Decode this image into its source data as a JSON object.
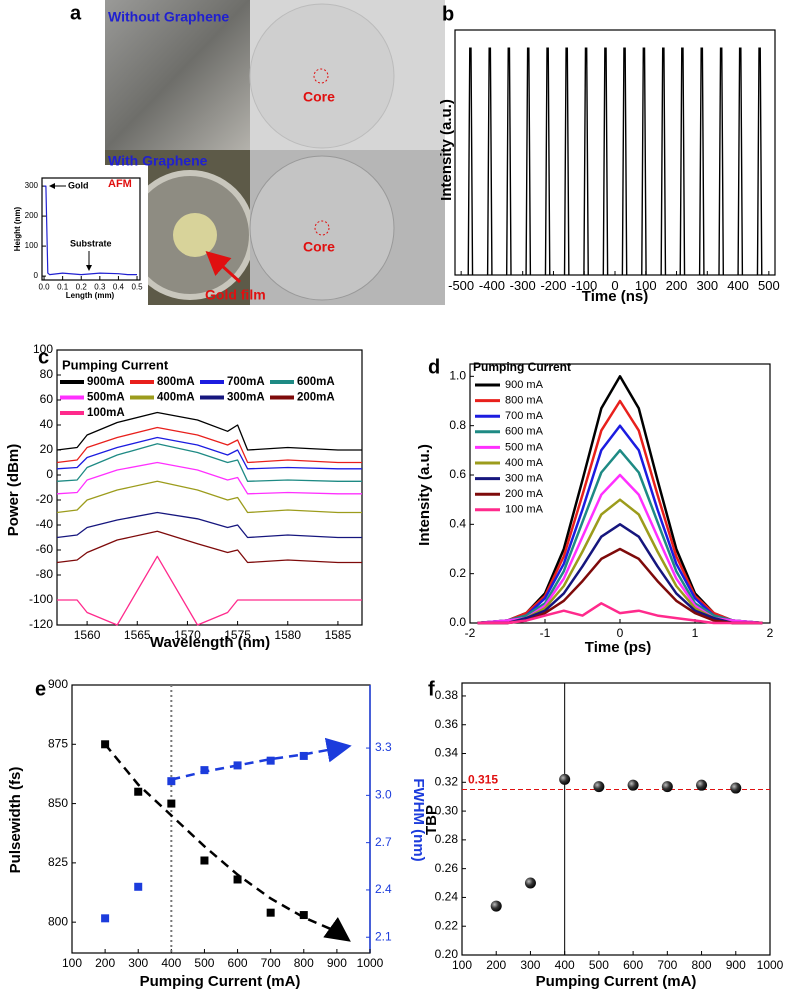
{
  "figure_a": {
    "label": "a",
    "top_left": "Without Graphene",
    "bottom_left": "With Graphene",
    "afm": "AFM",
    "core_labels": [
      "Core",
      "Core"
    ],
    "gold_film": "Gold film"
  },
  "chart_data": [
    {
      "type": "line",
      "xlabel": "Length (mm)",
      "ylabel": "Height (nm)",
      "annotations": [
        "Gold",
        "Substrate"
      ],
      "xlim": [
        -0.011,
        0.516
      ],
      "xticks": [
        {
          "value": 0,
          "label": "0.0"
        },
        0.1,
        0.2,
        0.3,
        0.4,
        0.5
      ],
      "ylim": [
        -13,
        327
      ],
      "yticks": [
        0,
        100,
        200,
        300
      ],
      "x": [
        0,
        0.01,
        0.02,
        0.03,
        0.1,
        0.2,
        0.3,
        0.4,
        0.45,
        0.5
      ],
      "series": [
        {
          "color": "#2020d0",
          "values": [
            300,
            300,
            10,
            5,
            10,
            5,
            10,
            8,
            5,
            5
          ]
        }
      ]
    },
    {
      "type": "spikes",
      "label": "b",
      "xlabel": "Time (ns)",
      "ylabel": "Intensity (a.u.)",
      "xlim": [
        -520,
        520
      ],
      "xticks": [
        -500,
        -400,
        -300,
        -200,
        -100,
        0,
        100,
        200,
        300,
        400,
        500
      ],
      "ylim": [
        0,
        1.08
      ],
      "color": "#000000",
      "x": [
        -470,
        -407,
        -345,
        -282,
        -219,
        -157,
        -94,
        -31,
        31,
        94,
        157,
        219,
        282,
        345,
        407,
        470
      ],
      "values": [
        1,
        1,
        1,
        1,
        1,
        1,
        1,
        1,
        1,
        1,
        1,
        1,
        1,
        1,
        1,
        1
      ]
    },
    {
      "type": "line",
      "label": "c",
      "xlabel": "Wavelength (nm)",
      "ylabel": "Power (dBm)",
      "legend_title": "Pumping Current",
      "xlim": [
        1557,
        1587.4
      ],
      "xticks": [
        1560,
        1565,
        1570,
        1575,
        1580,
        1585
      ],
      "ylim": [
        -120,
        100
      ],
      "yticks": [
        -120,
        -100,
        -80,
        -60,
        -40,
        -20,
        0,
        20,
        40,
        60,
        80,
        100
      ],
      "x": [
        1557,
        1559,
        1560,
        1563,
        1567,
        1571,
        1574,
        1575,
        1576,
        1580,
        1585,
        1587.4
      ],
      "series": [
        {
          "name": "900mA",
          "color": "#000000",
          "values": [
            20,
            22,
            32,
            42,
            50,
            44,
            35,
            40,
            20,
            22,
            20,
            20
          ]
        },
        {
          "name": "800mA",
          "color": "#e8201c",
          "values": [
            10,
            12,
            22,
            30,
            38,
            32,
            24,
            28,
            10,
            12,
            10,
            10
          ]
        },
        {
          "name": "700mA",
          "color": "#1c1ce0",
          "values": [
            5,
            6,
            14,
            22,
            30,
            24,
            16,
            20,
            5,
            6,
            5,
            5
          ]
        },
        {
          "name": "600mA",
          "color": "#1e8a84",
          "values": [
            -5,
            -4,
            6,
            16,
            25,
            18,
            10,
            12,
            -5,
            -4,
            -5,
            -5
          ]
        },
        {
          "name": "500mA",
          "color": "#ff30ff",
          "values": [
            -15,
            -14,
            -4,
            4,
            10,
            4,
            -4,
            -2,
            -15,
            -14,
            -15,
            -15
          ]
        },
        {
          "name": "400mA",
          "color": "#9c9c1c",
          "values": [
            -30,
            -28,
            -20,
            -12,
            -5,
            -12,
            -20,
            -18,
            -30,
            -28,
            -30,
            -30
          ]
        },
        {
          "name": "300mA",
          "color": "#16167e",
          "values": [
            -50,
            -48,
            -42,
            -36,
            -30,
            -35,
            -42,
            -40,
            -50,
            -48,
            -50,
            -50
          ]
        },
        {
          "name": "200mA",
          "color": "#7e0a0a",
          "values": [
            -70,
            -68,
            -62,
            -52,
            -45,
            -55,
            -62,
            -60,
            -70,
            -68,
            -70,
            -70
          ]
        },
        {
          "name": "100mA",
          "color": "#ff2a8c",
          "values": [
            -100,
            -100,
            -110,
            -120,
            -65,
            -120,
            -110,
            -100,
            -100,
            -100,
            -100,
            -100
          ]
        }
      ]
    },
    {
      "type": "line",
      "label": "d",
      "xlabel": "Time (ps)",
      "ylabel": "Intensity (a.u.)",
      "legend_title": "Pumping Current",
      "xlim": [
        -2,
        2
      ],
      "xticks": [
        -2,
        -1,
        0,
        1,
        2
      ],
      "ylim": [
        0,
        1.05
      ],
      "yticks": [
        {
          "value": 0,
          "label": "0.0"
        },
        0.2,
        0.4,
        0.6,
        0.8,
        {
          "value": 1,
          "label": "1.0"
        }
      ],
      "x": [
        -1.9,
        -1.5,
        -1.25,
        -1,
        -0.75,
        -0.5,
        -0.25,
        0,
        0.25,
        0.5,
        0.75,
        1,
        1.25,
        1.5,
        1.9
      ],
      "series": [
        {
          "name": "900 mA",
          "color": "#000000",
          "values": [
            0,
            0.01,
            0.04,
            0.12,
            0.3,
            0.58,
            0.87,
            1,
            0.87,
            0.58,
            0.3,
            0.12,
            0.04,
            0.01,
            0
          ]
        },
        {
          "name": "800 mA",
          "color": "#e8201c",
          "values": [
            0,
            0.01,
            0.04,
            0.11,
            0.27,
            0.52,
            0.78,
            0.9,
            0.78,
            0.52,
            0.27,
            0.11,
            0.04,
            0.01,
            0
          ]
        },
        {
          "name": "700 mA",
          "color": "#1c1ce0",
          "values": [
            0,
            0.01,
            0.03,
            0.1,
            0.24,
            0.46,
            0.7,
            0.8,
            0.7,
            0.46,
            0.24,
            0.1,
            0.03,
            0.01,
            0
          ]
        },
        {
          "name": "600 mA",
          "color": "#1e8a84",
          "values": [
            0,
            0.01,
            0.03,
            0.08,
            0.21,
            0.41,
            0.61,
            0.7,
            0.61,
            0.41,
            0.21,
            0.08,
            0.03,
            0.01,
            0
          ]
        },
        {
          "name": "500 mA",
          "color": "#ff30ff",
          "values": [
            0,
            0.01,
            0.02,
            0.07,
            0.18,
            0.35,
            0.52,
            0.6,
            0.52,
            0.35,
            0.18,
            0.07,
            0.02,
            0.01,
            0
          ]
        },
        {
          "name": "400 mA",
          "color": "#9c9c1c",
          "values": [
            0,
            0,
            0.02,
            0.06,
            0.15,
            0.29,
            0.44,
            0.5,
            0.44,
            0.29,
            0.15,
            0.06,
            0.02,
            0,
            0
          ]
        },
        {
          "name": "300 mA",
          "color": "#16167e",
          "values": [
            0,
            0,
            0.02,
            0.05,
            0.12,
            0.23,
            0.35,
            0.4,
            0.35,
            0.23,
            0.12,
            0.05,
            0.02,
            0,
            0
          ]
        },
        {
          "name": "200 mA",
          "color": "#7e0a0a",
          "values": [
            0,
            0,
            0.01,
            0.04,
            0.09,
            0.17,
            0.26,
            0.3,
            0.26,
            0.17,
            0.09,
            0.04,
            0.01,
            0,
            0
          ]
        },
        {
          "name": "100 mA",
          "color": "#ff2a8c",
          "values": [
            0,
            0,
            0.01,
            0.03,
            0.05,
            0.03,
            0.08,
            0.04,
            0.05,
            0.03,
            0.02,
            0.01,
            0,
            0,
            0
          ]
        }
      ]
    },
    {
      "type": "scatter",
      "label": "e",
      "xlabel": "Pumping Current (mA)",
      "ylabel": "Pulsewidth (fs)",
      "y2label": "FWHM (nm)",
      "xlim": [
        100,
        1000
      ],
      "xticks": [
        100,
        200,
        300,
        400,
        500,
        600,
        700,
        800,
        900,
        1000
      ],
      "ylim": [
        787,
        900
      ],
      "yticks": [
        800,
        825,
        850,
        875,
        900
      ],
      "y2lim": [
        2.0,
        3.7
      ],
      "y2ticks": [
        2.1,
        2.4,
        2.7,
        {
          "value": 3,
          "label": "3.0"
        },
        3.3
      ],
      "vline": 400,
      "series": [
        {
          "color": "#000000",
          "marker": "square",
          "x": [
            200,
            300,
            400,
            500,
            600,
            700,
            800
          ],
          "values": [
            875,
            855,
            850,
            826,
            818,
            804,
            803
          ]
        },
        {
          "color": "#1c3cdc",
          "marker": "square",
          "axis": "y2",
          "x": [
            200,
            300,
            400,
            500,
            600,
            700,
            800,
            900
          ],
          "values": [
            2.22,
            2.42,
            3.09,
            3.16,
            3.19,
            3.22,
            3.25,
            3.3
          ]
        }
      ],
      "fits": [
        {
          "color": "#000000",
          "x": [
            200,
            300,
            400,
            500,
            600,
            700,
            800,
            900,
            930
          ],
          "values": [
            875,
            858,
            845,
            832,
            820,
            810,
            802,
            796,
            793
          ]
        },
        {
          "color": "#1c3cdc",
          "axis": "y2",
          "x": [
            400,
            500,
            600,
            700,
            800,
            930
          ],
          "values": [
            3.1,
            3.15,
            3.19,
            3.23,
            3.26,
            3.31
          ]
        }
      ]
    },
    {
      "type": "scatter",
      "label": "f",
      "xlabel": "Pumping Current (mA)",
      "ylabel": "TBP",
      "xlim": [
        100,
        1000
      ],
      "xticks": [
        100,
        200,
        300,
        400,
        500,
        600,
        700,
        800,
        900,
        1000
      ],
      "ylim": [
        0.2,
        0.389
      ],
      "yticks": [
        {
          "value": 0.2,
          "label": "0.20"
        },
        0.22,
        0.24,
        0.26,
        0.28,
        {
          "value": 0.3,
          "label": "0.30"
        },
        0.32,
        0.34,
        0.36,
        0.38
      ],
      "vline": 400,
      "hline": 0.315,
      "series": [
        {
          "color": "#111111",
          "marker": "sphere",
          "x": [
            200,
            300,
            400,
            500,
            600,
            700,
            800,
            900
          ],
          "values": [
            0.234,
            0.25,
            0.322,
            0.317,
            0.318,
            0.317,
            0.318,
            0.316
          ]
        }
      ]
    }
  ]
}
